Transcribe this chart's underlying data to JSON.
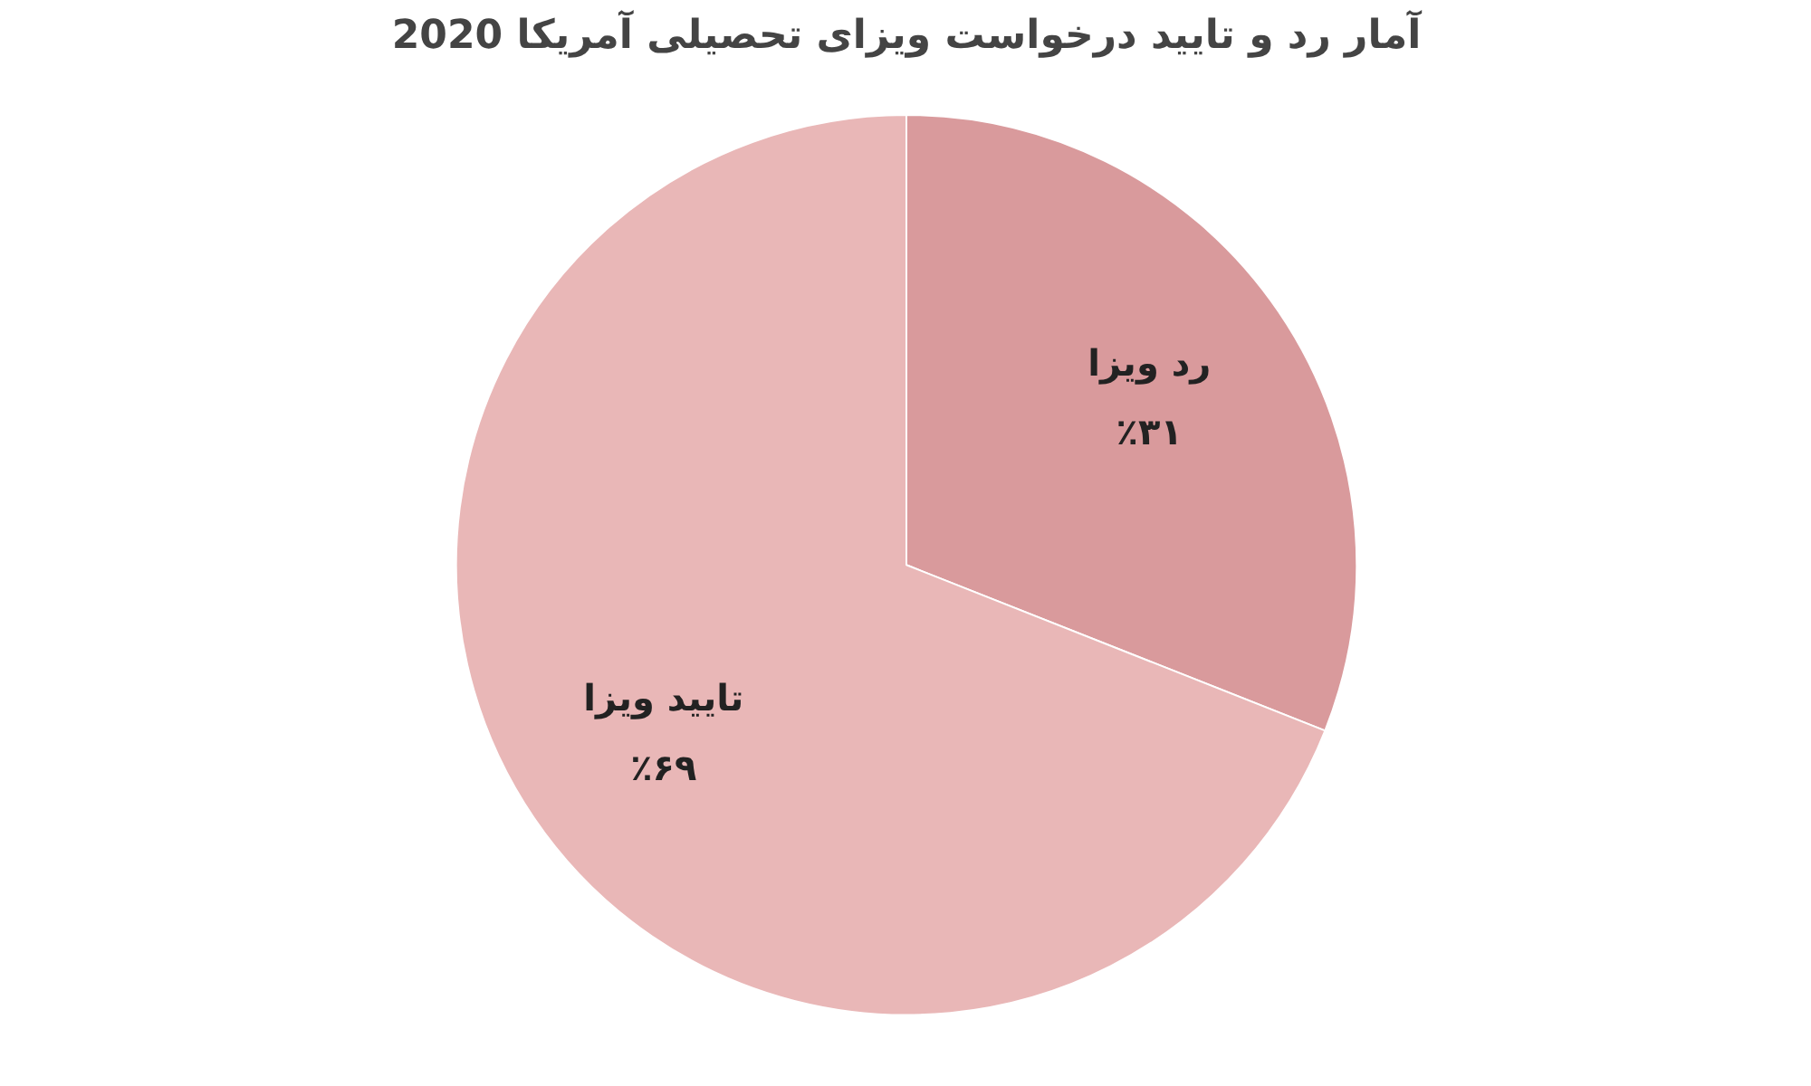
{
  "chart_data": {
    "type": "pie",
    "title": "آمار رد و تایید درخواست ویزای تحصیلی آمریکا 2020",
    "categories": [
      "رد ویزا",
      "تایید ویزا"
    ],
    "values": [
      31,
      69
    ],
    "colors": [
      "#d99a9c",
      "#e9b7b7"
    ],
    "value_labels": [
      "٪۳۱",
      "٪۶۹"
    ]
  }
}
